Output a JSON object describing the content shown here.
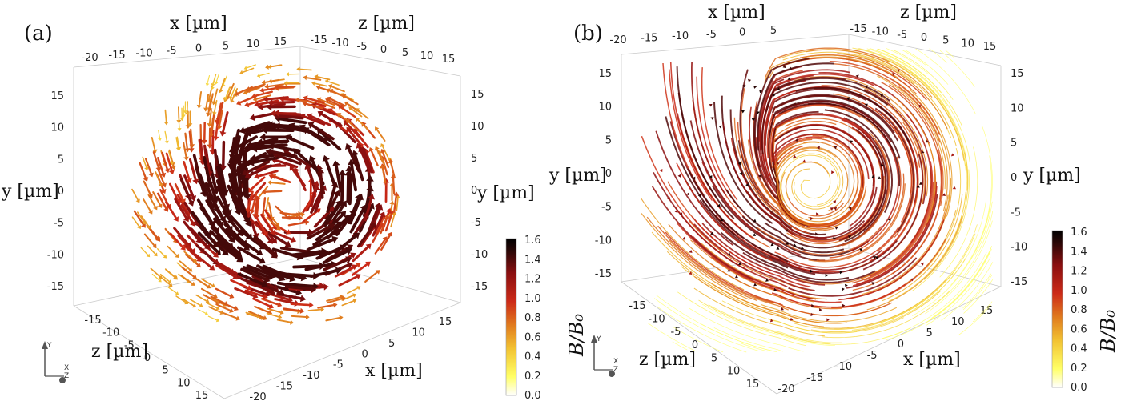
{
  "panels": [
    {
      "label": "(a)",
      "top_x_label": "x [µm]",
      "top_x_ticks": [
        "-20",
        "-15",
        "-10",
        "-5",
        "0",
        "5",
        "10",
        "15"
      ],
      "top_z_label": "z [µm]",
      "top_z_ticks": [
        "-15",
        "-10",
        "-5",
        "0",
        "5",
        "10",
        "15"
      ],
      "left_y_label": "y [µm]",
      "left_y_ticks": [
        "15",
        "10",
        "5",
        "0",
        "-5",
        "-10",
        "-15"
      ],
      "right_y_label": "y [µm]",
      "right_y_ticks": [
        "15",
        "10",
        "5",
        "0",
        "-5",
        "-10",
        "-15"
      ],
      "bottom_z_label": "z [µm]",
      "bottom_z_ticks": [
        "-15",
        "-10",
        "-5",
        "0",
        "5",
        "10",
        "15"
      ],
      "bottom_x_label": "x [µm]",
      "bottom_x_ticks": [
        "-20",
        "-15",
        "-10",
        "-5",
        "0",
        "5",
        "10",
        "15"
      ],
      "colorbar_label": "B/B₀",
      "colorbar_ticks": [
        "1.6",
        "1.4",
        "1.2",
        "1.0",
        "0.8",
        "0.6",
        "0.4",
        "0.2",
        "0.0"
      ],
      "triad": [
        "Y",
        "X",
        "Z"
      ],
      "glyph_style": "arrows"
    },
    {
      "label": "(b)",
      "top_x_label": "x [µm]",
      "top_x_ticks": [
        "-20",
        "-15",
        "-10",
        "-5",
        "0",
        "5"
      ],
      "top_z_label": "z [µm]",
      "top_z_ticks": [
        "-15",
        "-10",
        "-5",
        "0",
        "5",
        "10",
        "15"
      ],
      "left_y_label": "y [µm]",
      "left_y_ticks": [
        "15",
        "10",
        "5",
        "0",
        "-5",
        "-10",
        "-15"
      ],
      "right_y_label": "y [µm]",
      "right_y_ticks": [
        "15",
        "10",
        "5",
        "0",
        "-5",
        "-10",
        "-15"
      ],
      "bottom_z_label": "z [µm]",
      "bottom_z_ticks": [
        "-15",
        "-10",
        "-5",
        "0",
        "5",
        "10",
        "15"
      ],
      "bottom_x_label": "x [µm]",
      "bottom_x_ticks": [
        "-20",
        "-15",
        "-10",
        "-5",
        "0",
        "5",
        "10",
        "15"
      ],
      "colorbar_label": "B/B₀",
      "colorbar_ticks": [
        "1.6",
        "1.4",
        "1.2",
        "1.0",
        "0.8",
        "0.6",
        "0.4",
        "0.2",
        "0.0"
      ],
      "triad": [
        "Y",
        "X",
        "Z"
      ],
      "glyph_style": "streamlines"
    }
  ],
  "colormap": [
    "#ffffff",
    "#ffff66",
    "#f2c232",
    "#e07a1e",
    "#cc2a18",
    "#8a0f10",
    "#2b0706",
    "#000000"
  ]
}
